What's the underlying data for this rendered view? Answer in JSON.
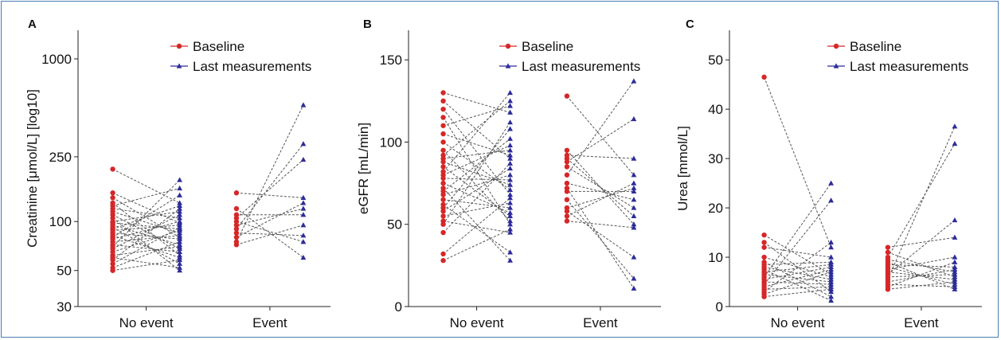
{
  "colors": {
    "baseline": "#d62728",
    "last": "#2c2c9a",
    "line": "#555555",
    "border": "#4a7db3"
  },
  "chart_data": [
    {
      "panel_label": "A",
      "type": "scatter",
      "title": "",
      "xlabel": "",
      "ylabel": "Creatinine [μmol/L] [log10]",
      "y_scale": "log10",
      "ylim": [
        30,
        1500
      ],
      "yticks": [
        30,
        50,
        100,
        250,
        1000
      ],
      "categories": [
        "No event",
        "Event"
      ],
      "legend": [
        "Baseline",
        "Last measurements"
      ],
      "legend_position": "top-right",
      "series": [
        {
          "name": "Baseline",
          "values": [
            [
              210,
              150,
              140,
              130,
              125,
              120,
              115,
              110,
              105,
              100,
              98,
              95,
              92,
              90,
              88,
              85,
              82,
              80,
              78,
              75,
              72,
              70,
              68,
              65,
              62,
              60,
              58,
              55,
              52,
              50
            ],
            [
              150,
              120,
              110,
              105,
              100,
              95,
              90,
              85,
              80,
              75,
              72
            ]
          ]
        },
        {
          "name": "Last measurements",
          "values": [
            [
              180,
              160,
              145,
              130,
              125,
              120,
              115,
              110,
              105,
              100,
              98,
              95,
              92,
              90,
              88,
              85,
              82,
              80,
              78,
              75,
              72,
              70,
              68,
              65,
              62,
              60,
              58,
              55,
              52,
              50
            ],
            [
              520,
              300,
              240,
              140,
              130,
              120,
              110,
              95,
              82,
              75,
              60
            ]
          ]
        }
      ]
    },
    {
      "panel_label": "B",
      "type": "scatter",
      "title": "",
      "xlabel": "",
      "ylabel": "eGFR [mL/min]",
      "y_scale": "linear",
      "ylim": [
        0,
        168
      ],
      "yticks": [
        0,
        50,
        100,
        150
      ],
      "categories": [
        "No event",
        "Event"
      ],
      "legend": [
        "Baseline",
        "Last measurements"
      ],
      "legend_position": "top-right",
      "series": [
        {
          "name": "Baseline",
          "values": [
            [
              130,
              125,
              120,
              115,
              110,
              105,
              100,
              95,
              92,
              90,
              88,
              85,
              82,
              80,
              78,
              75,
              72,
              70,
              68,
              65,
              62,
              60,
              58,
              55,
              52,
              50,
              45,
              32,
              28
            ],
            [
              128,
              95,
              92,
              90,
              88,
              85,
              80,
              75,
              72,
              70,
              65,
              60,
              58,
              55,
              52
            ]
          ]
        },
        {
          "name": "Last measurements",
          "values": [
            [
              130,
              125,
              122,
              118,
              112,
              108,
              102,
              98,
              95,
              92,
              90,
              87,
              84,
              80,
              77,
              74,
              71,
              68,
              66,
              63,
              60,
              57,
              55,
              52,
              50,
              47,
              45,
              33,
              28
            ],
            [
              137,
              114,
              90,
              80,
              75,
              72,
              70,
              65,
              60,
              55,
              50,
              48,
              30,
              17,
              11
            ]
          ]
        }
      ]
    },
    {
      "panel_label": "C",
      "type": "scatter",
      "title": "",
      "xlabel": "",
      "ylabel": "Urea [mmol/L]",
      "y_scale": "linear",
      "ylim": [
        0,
        56
      ],
      "yticks": [
        0,
        10,
        20,
        30,
        40,
        50
      ],
      "categories": [
        "No event",
        "Event"
      ],
      "legend": [
        "Baseline",
        "Last measurements"
      ],
      "legend_position": "top-right",
      "series": [
        {
          "name": "Baseline",
          "values": [
            [
              46.5,
              14.5,
              13,
              12,
              10,
              9,
              8.5,
              8,
              7.5,
              7,
              6.5,
              6,
              5.5,
              5,
              4.5,
              4,
              3.5,
              3,
              2.5,
              2
            ],
            [
              12,
              11,
              10,
              9.5,
              9,
              8.5,
              8,
              7.5,
              7,
              6.5,
              6,
              5.5,
              5,
              4.5,
              4,
              3.5
            ]
          ]
        },
        {
          "name": "Last measurements",
          "values": [
            [
              25,
              21.5,
              13,
              12,
              10,
              9,
              8.5,
              8,
              7.5,
              7,
              6.5,
              6,
              5.5,
              5,
              4.5,
              4,
              3.5,
              3,
              2,
              1.2
            ],
            [
              36.5,
              33,
              17.5,
              14,
              10,
              9,
              8,
              7.5,
              7,
              6.5,
              6,
              5.5,
              5,
              4.5,
              4,
              3.5
            ]
          ]
        }
      ]
    }
  ]
}
